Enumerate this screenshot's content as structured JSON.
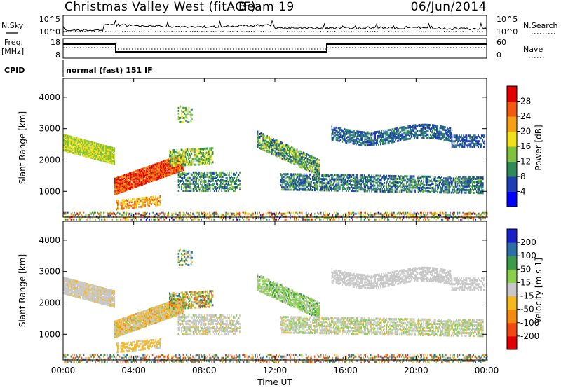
{
  "header": {
    "station": "Christmas Valley West (fitACF)",
    "beam": "Beam 19",
    "date": "06/Jun/2014"
  },
  "strip_panels": {
    "nsky": {
      "label": "N.Sky",
      "tick_top": "10^5",
      "tick_bottom": "10^0",
      "right_label": "N.Search",
      "right_tick_top": "10^5",
      "right_tick_bottom": "10^0"
    },
    "freq": {
      "label_line1": "Freq.",
      "label_line2": "[MHz]",
      "tick_top": "18",
      "tick_bottom": "8",
      "right_label": "Nave",
      "right_tick_top": "60",
      "right_tick_bottom": "0"
    },
    "cpid": {
      "label": "CPID",
      "text": "normal (fast) 151 IF"
    }
  },
  "chart_data": [
    {
      "type": "heatmap",
      "title": "",
      "xlabel": "",
      "ylabel": "Slant Range [km]",
      "xlim": [
        0,
        24
      ],
      "ylim": [
        180,
        4600
      ],
      "y_ticks": [
        1000,
        2000,
        3000,
        4000
      ],
      "colorbar": {
        "label": "Power [dB]",
        "range": [
          0,
          32
        ],
        "ticks": [
          "4",
          "8",
          "12",
          "16",
          "20",
          "24",
          "28"
        ],
        "colors": [
          "#0000ff",
          "#1e3fb4",
          "#2f8a5a",
          "#7fc23c",
          "#f2e01e",
          "#f6a018",
          "#f25a10",
          "#e20000"
        ]
      }
    },
    {
      "type": "heatmap",
      "title": "",
      "xlabel": "Time UT",
      "ylabel": "Slant Range [km]",
      "xlim": [
        0,
        24
      ],
      "ylim": [
        180,
        4600
      ],
      "x_ticks": [
        "00:00",
        "04:00",
        "08:00",
        "12:00",
        "16:00",
        "20:00",
        "00:00"
      ],
      "y_ticks": [
        1000,
        2000,
        3000,
        4000
      ],
      "colorbar": {
        "label": "Velocity [m s-1]",
        "ticks": [
          "200",
          "100",
          "50",
          "15",
          "-15",
          "-50",
          "-100",
          "-200"
        ],
        "colors": [
          "#1a20c8",
          "#2b6ea8",
          "#3c9a48",
          "#8ad04a",
          "#c8c8c8",
          "#f5b81e",
          "#f58a10",
          "#f04a10",
          "#e00000"
        ]
      }
    }
  ]
}
